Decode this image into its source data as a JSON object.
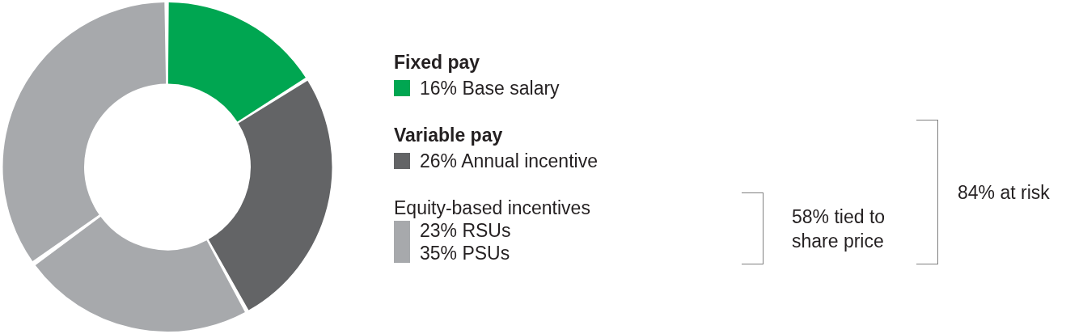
{
  "chart_data": {
    "type": "donut",
    "categories": [
      "Base salary",
      "Annual incentive",
      "RSUs",
      "PSUs"
    ],
    "values": [
      16,
      26,
      23,
      35
    ],
    "colors": [
      "#00a651",
      "#636466",
      "#a7a9ac",
      "#a7a9ac"
    ],
    "value_labels": [
      "16%",
      "26%",
      "23%",
      "35%"
    ],
    "legend": "right",
    "annotations": [
      "Fixed pay",
      "Variable pay",
      "Equity-based incentives",
      "58% tied to share price",
      "84% at risk"
    ]
  }
}
